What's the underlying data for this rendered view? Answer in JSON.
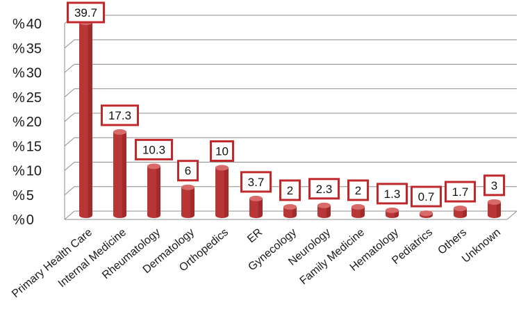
{
  "chart_data": {
    "type": "bar",
    "style": "3d-cylinder",
    "title": "",
    "xlabel": "",
    "ylabel": "",
    "y_tick_prefix": "%",
    "ylim": [
      0,
      40
    ],
    "yticks": [
      0,
      5,
      10,
      15,
      20,
      25,
      30,
      35,
      40
    ],
    "grid": true,
    "legend": "none",
    "categories": [
      "Primary Health Care",
      "Internal Medicine",
      "Rheumatology",
      "Dermatology",
      "Orthopedics",
      "ER",
      "Gynecology",
      "Neurology",
      "Family Medicine",
      "Hematology",
      "Pediatrics",
      "Others",
      "Unknown"
    ],
    "values": [
      39.7,
      17.3,
      10.3,
      6,
      10,
      3.7,
      2,
      2.3,
      2,
      1.3,
      0.7,
      1.7,
      3
    ],
    "data_labels": [
      "39.7",
      "17.3",
      "10.3",
      "6",
      "10",
      "3.7",
      "2",
      "2.3",
      "2",
      "1.3",
      "0.7",
      "1.7",
      "3"
    ]
  },
  "colors": {
    "bar_body": "#b93636",
    "bar_top": "#d96a6a",
    "bar_shadow": "#8e2323",
    "label_border": "#c0292b",
    "grid": "#8c8c8c",
    "muted_category_label": "#4f6b8a"
  }
}
